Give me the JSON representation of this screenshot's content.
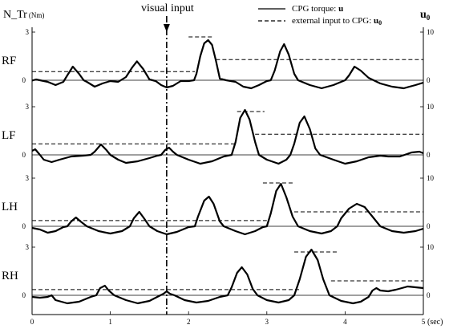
{
  "chart_data": {
    "type": "line",
    "x_range": [
      0,
      5
    ],
    "x_ticks": [
      "0",
      "1",
      "2",
      "3",
      "4",
      "5"
    ],
    "x_unit": "(sec)",
    "left_axis_label": "N_Tr",
    "left_axis_unit": "(Nm)",
    "right_axis_label": "u",
    "right_axis_sub": "0",
    "left_ticks": [
      "0",
      "3"
    ],
    "right_ticks": [
      "0",
      "10"
    ],
    "left_range": [
      -1,
      3
    ],
    "right_range": [
      -3.33,
      10
    ],
    "visual_input": {
      "label": "visual input",
      "x": 1.72
    },
    "legend": [
      {
        "style": "solid",
        "text": "CPG torque: ",
        "sym": "u"
      },
      {
        "style": "dashed",
        "text": "external input to CPG: ",
        "sym": "u",
        "sub": "0"
      }
    ],
    "series_styles": {
      "torque": "solid",
      "input": "dashed"
    },
    "panels": [
      {
        "label": "RF",
        "torque": [
          [
            0,
            -0.02
          ],
          [
            0.05,
            0.05
          ],
          [
            0.1,
            0.0
          ],
          [
            0.2,
            -0.1
          ],
          [
            0.3,
            -0.3
          ],
          [
            0.4,
            -0.1
          ],
          [
            0.45,
            0.3
          ],
          [
            0.52,
            0.85
          ],
          [
            0.6,
            0.4
          ],
          [
            0.66,
            0.0
          ],
          [
            0.7,
            -0.1
          ],
          [
            0.8,
            -0.4
          ],
          [
            0.9,
            -0.2
          ],
          [
            1.0,
            -0.05
          ],
          [
            1.1,
            -0.1
          ],
          [
            1.2,
            0.2
          ],
          [
            1.28,
            0.8
          ],
          [
            1.34,
            1.18
          ],
          [
            1.42,
            0.7
          ],
          [
            1.5,
            0.05
          ],
          [
            1.58,
            -0.05
          ],
          [
            1.65,
            -0.3
          ],
          [
            1.72,
            -0.45
          ],
          [
            1.8,
            -0.35
          ],
          [
            1.9,
            -0.05
          ],
          [
            2.0,
            -0.05
          ],
          [
            2.07,
            0.0
          ],
          [
            2.1,
            0.4
          ],
          [
            2.15,
            1.5
          ],
          [
            2.2,
            2.3
          ],
          [
            2.25,
            2.5
          ],
          [
            2.3,
            2.2
          ],
          [
            2.35,
            1.2
          ],
          [
            2.4,
            0.1
          ],
          [
            2.48,
            0.0
          ],
          [
            2.6,
            -0.1
          ],
          [
            2.7,
            -0.4
          ],
          [
            2.8,
            -0.5
          ],
          [
            2.9,
            -0.3
          ],
          [
            3.0,
            -0.05
          ],
          [
            3.05,
            0.0
          ],
          [
            3.1,
            0.6
          ],
          [
            3.17,
            1.8
          ],
          [
            3.22,
            2.25
          ],
          [
            3.28,
            1.6
          ],
          [
            3.35,
            0.4
          ],
          [
            3.4,
            0.0
          ],
          [
            3.55,
            -0.3
          ],
          [
            3.7,
            -0.5
          ],
          [
            3.85,
            -0.3
          ],
          [
            3.95,
            -0.1
          ],
          [
            4.0,
            0.0
          ],
          [
            4.05,
            0.3
          ],
          [
            4.12,
            0.85
          ],
          [
            4.2,
            0.6
          ],
          [
            4.3,
            0.15
          ],
          [
            4.45,
            -0.2
          ],
          [
            4.6,
            -0.4
          ],
          [
            4.75,
            -0.5
          ],
          [
            4.9,
            -0.3
          ],
          [
            5.0,
            -0.15
          ]
        ],
        "input": [
          [
            0,
            1.8
          ],
          [
            2.3,
            1.8
          ],
          [
            2.3,
            9.0
          ],
          [
            2.55,
            9.0
          ],
          [
            2.55,
            0
          ],
          [
            2.35,
            0
          ],
          [
            2.35,
            4.3
          ],
          [
            5.0,
            4.3
          ]
        ],
        "input_segments": [
          [
            [
              0,
              1.8
            ],
            [
              2.08,
              1.8
            ]
          ],
          [
            [
              2.0,
              9.0
            ],
            [
              2.3,
              9.0
            ]
          ],
          [
            [
              2.35,
              4.3
            ],
            [
              5.0,
              4.3
            ]
          ]
        ]
      },
      {
        "label": "LF",
        "torque": [
          [
            0,
            0.25
          ],
          [
            0.04,
            0.35
          ],
          [
            0.1,
            0.0
          ],
          [
            0.15,
            -0.3
          ],
          [
            0.25,
            -0.45
          ],
          [
            0.35,
            -0.3
          ],
          [
            0.5,
            -0.1
          ],
          [
            0.65,
            -0.05
          ],
          [
            0.75,
            0.0
          ],
          [
            0.8,
            0.2
          ],
          [
            0.88,
            0.65
          ],
          [
            0.95,
            0.3
          ],
          [
            1.0,
            0.0
          ],
          [
            1.1,
            -0.3
          ],
          [
            1.2,
            -0.5
          ],
          [
            1.35,
            -0.4
          ],
          [
            1.5,
            -0.2
          ],
          [
            1.6,
            -0.05
          ],
          [
            1.65,
            0.0
          ],
          [
            1.7,
            0.3
          ],
          [
            1.75,
            0.45
          ],
          [
            1.8,
            0.2
          ],
          [
            1.85,
            0.0
          ],
          [
            2.0,
            -0.3
          ],
          [
            2.15,
            -0.55
          ],
          [
            2.3,
            -0.4
          ],
          [
            2.45,
            -0.1
          ],
          [
            2.55,
            0.0
          ],
          [
            2.6,
            0.8
          ],
          [
            2.66,
            2.3
          ],
          [
            2.72,
            2.8
          ],
          [
            2.78,
            2.2
          ],
          [
            2.85,
            0.8
          ],
          [
            2.9,
            0.0
          ],
          [
            3.0,
            -0.3
          ],
          [
            3.15,
            -0.55
          ],
          [
            3.25,
            -0.3
          ],
          [
            3.3,
            0.0
          ],
          [
            3.35,
            0.7
          ],
          [
            3.42,
            2.0
          ],
          [
            3.48,
            2.4
          ],
          [
            3.55,
            1.6
          ],
          [
            3.62,
            0.4
          ],
          [
            3.68,
            0.0
          ],
          [
            3.85,
            -0.3
          ],
          [
            4.0,
            -0.55
          ],
          [
            4.15,
            -0.4
          ],
          [
            4.3,
            -0.15
          ],
          [
            4.45,
            -0.05
          ],
          [
            4.55,
            -0.1
          ],
          [
            4.7,
            -0.1
          ],
          [
            4.85,
            0.15
          ],
          [
            4.95,
            0.2
          ],
          [
            5.0,
            0.1
          ]
        ],
        "input_segments": [
          [
            [
              0,
              2.3
            ],
            [
              2.62,
              2.3
            ]
          ],
          [
            [
              2.62,
              9.0
            ],
            [
              2.97,
              9.0
            ]
          ],
          [
            [
              2.85,
              4.3
            ],
            [
              5.0,
              4.3
            ]
          ]
        ]
      },
      {
        "label": "LH",
        "torque": [
          [
            0,
            -0.1
          ],
          [
            0.1,
            -0.2
          ],
          [
            0.2,
            -0.4
          ],
          [
            0.3,
            -0.3
          ],
          [
            0.4,
            -0.05
          ],
          [
            0.45,
            0.0
          ],
          [
            0.5,
            0.3
          ],
          [
            0.56,
            0.55
          ],
          [
            0.62,
            0.3
          ],
          [
            0.7,
            0.0
          ],
          [
            0.85,
            -0.3
          ],
          [
            1.0,
            -0.45
          ],
          [
            1.15,
            -0.3
          ],
          [
            1.25,
            0.0
          ],
          [
            1.3,
            0.5
          ],
          [
            1.37,
            0.9
          ],
          [
            1.43,
            0.5
          ],
          [
            1.5,
            0.0
          ],
          [
            1.6,
            -0.3
          ],
          [
            1.72,
            -0.5
          ],
          [
            1.85,
            -0.35
          ],
          [
            2.0,
            -0.05
          ],
          [
            2.08,
            0.0
          ],
          [
            2.12,
            0.6
          ],
          [
            2.2,
            1.6
          ],
          [
            2.26,
            1.85
          ],
          [
            2.32,
            1.4
          ],
          [
            2.4,
            0.3
          ],
          [
            2.45,
            0.0
          ],
          [
            2.6,
            -0.3
          ],
          [
            2.72,
            -0.5
          ],
          [
            2.85,
            -0.3
          ],
          [
            2.95,
            -0.05
          ],
          [
            3.0,
            0.0
          ],
          [
            3.05,
            0.8
          ],
          [
            3.12,
            2.2
          ],
          [
            3.18,
            2.65
          ],
          [
            3.25,
            1.8
          ],
          [
            3.33,
            0.6
          ],
          [
            3.4,
            0.0
          ],
          [
            3.55,
            -0.3
          ],
          [
            3.7,
            -0.45
          ],
          [
            3.82,
            -0.3
          ],
          [
            3.9,
            0.0
          ],
          [
            3.95,
            0.5
          ],
          [
            4.05,
            1.1
          ],
          [
            4.15,
            1.4
          ],
          [
            4.25,
            1.2
          ],
          [
            4.35,
            0.6
          ],
          [
            4.45,
            0.0
          ],
          [
            4.6,
            -0.3
          ],
          [
            4.75,
            -0.4
          ],
          [
            4.9,
            -0.3
          ],
          [
            5.0,
            -0.15
          ]
        ],
        "input_segments": [
          [
            [
              0,
              1.2
            ],
            [
              3.0,
              1.2
            ]
          ],
          [
            [
              2.95,
              9.0
            ],
            [
              3.35,
              9.0
            ]
          ],
          [
            [
              3.35,
              3.0
            ],
            [
              5.0,
              3.0
            ]
          ]
        ]
      },
      {
        "label": "RH",
        "torque": [
          [
            0,
            -0.1
          ],
          [
            0.1,
            -0.15
          ],
          [
            0.2,
            -0.1
          ],
          [
            0.25,
            0.0
          ],
          [
            0.3,
            -0.3
          ],
          [
            0.45,
            -0.5
          ],
          [
            0.6,
            -0.4
          ],
          [
            0.75,
            -0.1
          ],
          [
            0.82,
            0.0
          ],
          [
            0.87,
            0.45
          ],
          [
            0.93,
            0.6
          ],
          [
            0.98,
            0.3
          ],
          [
            1.05,
            0.0
          ],
          [
            1.2,
            -0.3
          ],
          [
            1.35,
            -0.5
          ],
          [
            1.5,
            -0.35
          ],
          [
            1.62,
            -0.05
          ],
          [
            1.68,
            0.1
          ],
          [
            1.72,
            0.25
          ],
          [
            1.76,
            0.1
          ],
          [
            1.82,
            0.0
          ],
          [
            1.95,
            -0.3
          ],
          [
            2.1,
            -0.45
          ],
          [
            2.25,
            -0.35
          ],
          [
            2.4,
            -0.1
          ],
          [
            2.5,
            0.0
          ],
          [
            2.55,
            0.5
          ],
          [
            2.62,
            1.4
          ],
          [
            2.68,
            1.75
          ],
          [
            2.75,
            1.3
          ],
          [
            2.82,
            0.4
          ],
          [
            2.88,
            0.0
          ],
          [
            3.0,
            -0.3
          ],
          [
            3.15,
            -0.45
          ],
          [
            3.28,
            -0.3
          ],
          [
            3.35,
            0.0
          ],
          [
            3.42,
            1.0
          ],
          [
            3.5,
            2.4
          ],
          [
            3.57,
            2.85
          ],
          [
            3.65,
            2.2
          ],
          [
            3.72,
            1.0
          ],
          [
            3.8,
            0.0
          ],
          [
            3.95,
            -0.35
          ],
          [
            4.1,
            -0.5
          ],
          [
            4.2,
            -0.4
          ],
          [
            4.3,
            -0.1
          ],
          [
            4.35,
            0.3
          ],
          [
            4.4,
            0.45
          ],
          [
            4.45,
            0.3
          ],
          [
            4.55,
            0.25
          ],
          [
            4.65,
            0.35
          ],
          [
            4.8,
            0.55
          ],
          [
            4.9,
            0.5
          ],
          [
            5.0,
            0.45
          ]
        ],
        "input_segments": [
          [
            [
              0,
              1.2
            ],
            [
              3.42,
              1.2
            ]
          ],
          [
            [
              3.35,
              9.0
            ],
            [
              3.9,
              9.0
            ]
          ],
          [
            [
              3.82,
              3.0
            ],
            [
              5.0,
              3.0
            ]
          ]
        ]
      }
    ]
  }
}
